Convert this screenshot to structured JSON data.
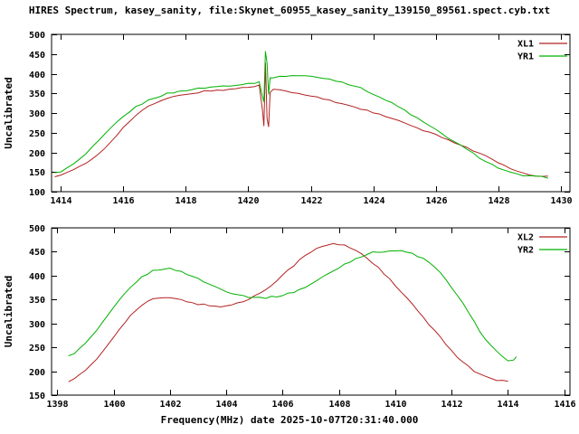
{
  "title": "HIRES Spectrum, kasey_sanity, file:Skynet_60955_kasey_sanity_139150_89561.spect.cyb.txt",
  "xlabel": "Frequency(MHz) date 2025-10-07T20:31:40.000",
  "colors": {
    "red": "#b22222",
    "green": "#00b000",
    "axis": "#000000",
    "background": "#ffffff"
  },
  "chart_data": [
    {
      "type": "line",
      "panel": "top",
      "ylabel": "Uncalibrated",
      "xlim": [
        1413.7,
        1430.3
      ],
      "ylim": [
        100,
        500
      ],
      "xticks": [
        1414,
        1416,
        1418,
        1420,
        1422,
        1424,
        1426,
        1428,
        1430
      ],
      "yticks": [
        100,
        150,
        200,
        250,
        300,
        350,
        400,
        450,
        500
      ],
      "legend_position": "top-right",
      "grid": false,
      "series": [
        {
          "name": "XL1",
          "color": "#b22222",
          "x": [
            1413.8,
            1414,
            1414.2,
            1414.4,
            1414.6,
            1414.8,
            1415,
            1415.2,
            1415.4,
            1415.6,
            1415.8,
            1416,
            1416.2,
            1416.4,
            1416.6,
            1416.8,
            1417,
            1417.2,
            1417.4,
            1417.6,
            1417.8,
            1418,
            1418.2,
            1418.4,
            1418.6,
            1418.8,
            1419,
            1419.2,
            1419.4,
            1419.6,
            1419.8,
            1420,
            1420.2,
            1420.35,
            1420.45,
            1420.5,
            1420.55,
            1420.6,
            1420.65,
            1420.7,
            1420.8,
            1421,
            1421.2,
            1421.4,
            1421.6,
            1421.8,
            1422,
            1422.2,
            1422.4,
            1422.6,
            1422.8,
            1423,
            1423.2,
            1423.4,
            1423.6,
            1423.8,
            1424,
            1424.2,
            1424.4,
            1424.6,
            1424.8,
            1425,
            1425.2,
            1425.4,
            1425.6,
            1425.8,
            1426,
            1426.2,
            1426.4,
            1426.6,
            1426.8,
            1427,
            1427.2,
            1427.4,
            1427.6,
            1427.8,
            1428,
            1428.2,
            1428.4,
            1428.6,
            1428.8,
            1429,
            1429.2,
            1429.4,
            1429.6
          ],
          "y": [
            140,
            143,
            148,
            155,
            163,
            172,
            183,
            196,
            211,
            228,
            246,
            263,
            279,
            294,
            306,
            316,
            324,
            331,
            336,
            341,
            344,
            348,
            350,
            353,
            355,
            356,
            358,
            359,
            361,
            362,
            364,
            366,
            368,
            370,
            310,
            268,
            430,
            288,
            264,
            352,
            362,
            358,
            355,
            352,
            349,
            346,
            343,
            340,
            336,
            332,
            328,
            324,
            320,
            316,
            311,
            306,
            301,
            296,
            291,
            286,
            280,
            274,
            268,
            262,
            256,
            250,
            244,
            238,
            232,
            226,
            219,
            212,
            205,
            198,
            190,
            182,
            174,
            166,
            158,
            151,
            146,
            143,
            141,
            139,
            138
          ]
        },
        {
          "name": "YR1",
          "color": "#00b000",
          "x": [
            1413.8,
            1414,
            1414.2,
            1414.4,
            1414.6,
            1414.8,
            1415,
            1415.2,
            1415.4,
            1415.6,
            1415.8,
            1416,
            1416.2,
            1416.4,
            1416.6,
            1416.8,
            1417,
            1417.2,
            1417.4,
            1417.6,
            1417.8,
            1418,
            1418.2,
            1418.4,
            1418.6,
            1418.8,
            1419,
            1419.2,
            1419.4,
            1419.6,
            1419.8,
            1420,
            1420.2,
            1420.35,
            1420.45,
            1420.5,
            1420.55,
            1420.6,
            1420.65,
            1420.7,
            1420.8,
            1421,
            1421.2,
            1421.4,
            1421.6,
            1421.8,
            1422,
            1422.2,
            1422.4,
            1422.6,
            1422.8,
            1423,
            1423.2,
            1423.4,
            1423.6,
            1423.8,
            1424,
            1424.2,
            1424.4,
            1424.6,
            1424.8,
            1425,
            1425.2,
            1425.4,
            1425.6,
            1425.8,
            1426,
            1426.2,
            1426.4,
            1426.6,
            1426.8,
            1427,
            1427.2,
            1427.4,
            1427.6,
            1427.8,
            1428,
            1428.2,
            1428.4,
            1428.6,
            1428.8,
            1429,
            1429.2,
            1429.4,
            1429.6
          ],
          "y": [
            147,
            152,
            160,
            170,
            182,
            196,
            212,
            228,
            245,
            261,
            277,
            291,
            304,
            315,
            324,
            332,
            339,
            344,
            349,
            352,
            355,
            358,
            360,
            362,
            364,
            366,
            367,
            369,
            370,
            372,
            373,
            375,
            377,
            380,
            342,
            330,
            455,
            428,
            348,
            388,
            391,
            393,
            394,
            395,
            395,
            394,
            393,
            391,
            389,
            386,
            383,
            379,
            374,
            369,
            363,
            356,
            349,
            341,
            333,
            325,
            316,
            307,
            297,
            287,
            277,
            267,
            257,
            247,
            237,
            227,
            217,
            207,
            197,
            187,
            178,
            169,
            161,
            154,
            148,
            144,
            141,
            139,
            138,
            137,
            136
          ]
        }
      ]
    },
    {
      "type": "line",
      "panel": "bottom",
      "ylabel": "Uncalibrated",
      "xlim": [
        1397.8,
        1416.2
      ],
      "ylim": [
        150,
        500
      ],
      "xticks": [
        1398,
        1400,
        1402,
        1404,
        1406,
        1408,
        1410,
        1412,
        1414,
        1416
      ],
      "yticks": [
        150,
        200,
        250,
        300,
        350,
        400,
        450,
        500
      ],
      "legend_position": "top-right",
      "grid": false,
      "series": [
        {
          "name": "XL2",
          "color": "#b22222",
          "x": [
            1398.4,
            1398.6,
            1398.8,
            1399,
            1399.2,
            1399.4,
            1399.6,
            1399.8,
            1400,
            1400.2,
            1400.4,
            1400.6,
            1400.8,
            1401,
            1401.2,
            1401.4,
            1401.6,
            1401.8,
            1402,
            1402.2,
            1402.4,
            1402.6,
            1402.8,
            1403,
            1403.2,
            1403.4,
            1403.6,
            1403.8,
            1404,
            1404.2,
            1404.4,
            1404.6,
            1404.8,
            1405,
            1405.2,
            1405.4,
            1405.6,
            1405.8,
            1406,
            1406.2,
            1406.4,
            1406.6,
            1406.8,
            1407,
            1407.2,
            1407.4,
            1407.6,
            1407.8,
            1408,
            1408.2,
            1408.4,
            1408.6,
            1408.8,
            1409,
            1409.2,
            1409.4,
            1409.6,
            1409.8,
            1410,
            1410.2,
            1410.4,
            1410.6,
            1410.8,
            1411,
            1411.2,
            1411.4,
            1411.6,
            1411.8,
            1412,
            1412.2,
            1412.4,
            1412.6,
            1412.8,
            1413,
            1413.2,
            1413.4,
            1413.6,
            1413.8,
            1414
          ],
          "y": [
            180,
            185,
            192,
            201,
            212,
            225,
            240,
            256,
            272,
            288,
            303,
            316,
            328,
            338,
            345,
            350,
            353,
            354,
            353,
            351,
            349,
            346,
            344,
            341,
            339,
            337,
            336,
            336,
            337,
            339,
            342,
            346,
            351,
            357,
            364,
            372,
            381,
            391,
            401,
            412,
            422,
            432,
            441,
            449,
            456,
            461,
            464,
            466,
            465,
            463,
            459,
            453,
            446,
            437,
            427,
            416,
            404,
            392,
            379,
            366,
            353,
            340,
            326,
            312,
            298,
            284,
            270,
            256,
            243,
            231,
            220,
            210,
            201,
            194,
            188,
            184,
            181,
            180,
            179
          ]
        },
        {
          "name": "YR2",
          "color": "#00b000",
          "x": [
            1398.4,
            1398.6,
            1398.8,
            1399,
            1399.2,
            1399.4,
            1399.6,
            1399.8,
            1400,
            1400.2,
            1400.4,
            1400.6,
            1400.8,
            1401,
            1401.2,
            1401.4,
            1401.6,
            1401.8,
            1402,
            1402.2,
            1402.4,
            1402.6,
            1402.8,
            1403,
            1403.2,
            1403.4,
            1403.6,
            1403.8,
            1404,
            1404.2,
            1404.4,
            1404.6,
            1404.8,
            1405,
            1405.2,
            1405.4,
            1405.6,
            1405.8,
            1406,
            1406.2,
            1406.4,
            1406.6,
            1406.8,
            1407,
            1407.2,
            1407.4,
            1407.6,
            1407.8,
            1408,
            1408.2,
            1408.4,
            1408.6,
            1408.8,
            1409,
            1409.2,
            1409.4,
            1409.6,
            1409.8,
            1410,
            1410.2,
            1410.4,
            1410.6,
            1410.8,
            1411,
            1411.2,
            1411.4,
            1411.6,
            1411.8,
            1412,
            1412.2,
            1412.4,
            1412.6,
            1412.8,
            1413,
            1413.2,
            1413.4,
            1413.6,
            1413.8,
            1414,
            1414.2,
            1414.3
          ],
          "y": [
            231,
            238,
            247,
            258,
            271,
            285,
            300,
            316,
            332,
            347,
            362,
            375,
            387,
            396,
            404,
            410,
            413,
            415,
            414,
            412,
            408,
            404,
            399,
            393,
            388,
            382,
            377,
            372,
            368,
            364,
            361,
            358,
            356,
            355,
            354,
            354,
            355,
            357,
            359,
            362,
            366,
            371,
            376,
            382,
            389,
            396,
            403,
            410,
            417,
            424,
            430,
            436,
            441,
            445,
            448,
            450,
            451,
            452,
            452,
            451,
            449,
            446,
            441,
            435,
            427,
            417,
            405,
            391,
            376,
            359,
            341,
            322,
            303,
            285,
            268,
            253,
            243,
            230,
            220,
            222,
            231
          ]
        }
      ]
    }
  ]
}
